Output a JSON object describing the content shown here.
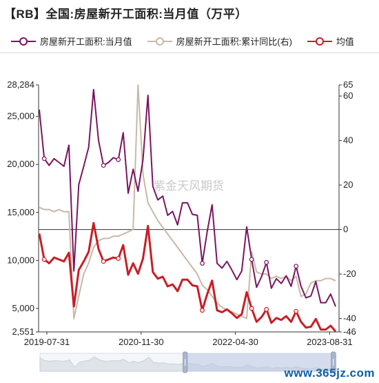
{
  "title": "【RB】全国:房屋新开工面积:当月值（万平）",
  "legend": [
    {
      "name": "房屋新开工面积:当月值",
      "color": "#7a1460"
    },
    {
      "name": "房屋新开工面积:累计同比(右)",
      "color": "#c8b8a6"
    },
    {
      "name": "均值",
      "color": "#c91d24"
    }
  ],
  "watermark": "紫金天风期货",
  "footer": "www.365jz.com",
  "chart_data": {
    "type": "line",
    "x_ticks": [
      "2019-07-31",
      "2020-11-30",
      "2022-04-30",
      "2023-08-31"
    ],
    "left_axis": {
      "ticks": [
        "28,284",
        "25,000",
        "20,000",
        "15,000",
        "10,000",
        "5,000",
        "2,551"
      ],
      "min": 2551,
      "max": 28284
    },
    "right_axis": {
      "ticks": [
        "65",
        "60",
        "40",
        "20",
        "0",
        "-20",
        "-40",
        "-46"
      ],
      "min": -46,
      "max": 65
    },
    "series": [
      {
        "name": "房屋新开工面积:当月值",
        "axis": "left",
        "color": "#7a1460",
        "values": [
          25700,
          20600,
          19900,
          20600,
          20200,
          19800,
          22000,
          8900,
          17900,
          19800,
          21800,
          27800,
          22500,
          19900,
          20200,
          20700,
          20500,
          23300,
          17000,
          19500,
          17200,
          20500,
          27200,
          17700,
          16300,
          16700,
          14700,
          15100,
          13700,
          16000,
          16000,
          14800,
          14700,
          9700,
          13000,
          15800,
          9700,
          9200,
          9900,
          9000,
          8000,
          8900,
          13500,
          10100,
          7200,
          8300,
          9800,
          7100,
          8100,
          7600,
          8400,
          7300,
          9400,
          7300,
          6100,
          6300,
          7800,
          5600,
          5600,
          6500,
          5200
        ]
      },
      {
        "name": "房屋新开工面积:累计同比(右)",
        "axis": "right",
        "color": "#c8b8a6",
        "values": [
          10,
          9,
          9,
          8,
          9,
          8,
          8,
          -40,
          -30,
          -20,
          -15,
          -8,
          -5,
          -4,
          -4,
          -3,
          -3,
          -2,
          -1,
          0,
          65,
          25,
          12,
          8,
          4,
          1,
          -2,
          -5,
          -8,
          -11,
          -14,
          -17,
          -20,
          -25,
          -27,
          -30,
          -33,
          -35,
          -36,
          -37,
          -38,
          -39,
          -40,
          -10,
          -19,
          -20,
          -20,
          -22,
          -21,
          -22,
          -21,
          -23,
          -21,
          -30,
          -29,
          -24,
          -23,
          -23,
          -22,
          -22,
          -23
        ]
      },
      {
        "name": "均值",
        "axis": "left",
        "color": "#c91d24",
        "values": [
          12800,
          10100,
          9700,
          10300,
          10100,
          9900,
          10800,
          5200,
          9000,
          9900,
          10900,
          13900,
          11200,
          9900,
          10100,
          10300,
          10200,
          11600,
          8500,
          9700,
          8600,
          10200,
          13600,
          8800,
          8100,
          8300,
          7300,
          7500,
          6800,
          8000,
          8000,
          7400,
          7300,
          4800,
          6500,
          7900,
          4800,
          4600,
          4900,
          4500,
          4000,
          4400,
          6700,
          5000,
          3600,
          4100,
          4900,
          3500,
          4000,
          3800,
          4200,
          3600,
          4700,
          3600,
          3000,
          3100,
          3900,
          2800,
          2800,
          3200,
          2600
        ]
      }
    ],
    "markers": {
      "series": [
        0,
        2
      ],
      "indices": [
        1,
        13,
        16,
        33,
        43,
        46,
        52
      ]
    },
    "slider": {
      "selected_from": 0.49,
      "selected_to": 0.99
    }
  }
}
